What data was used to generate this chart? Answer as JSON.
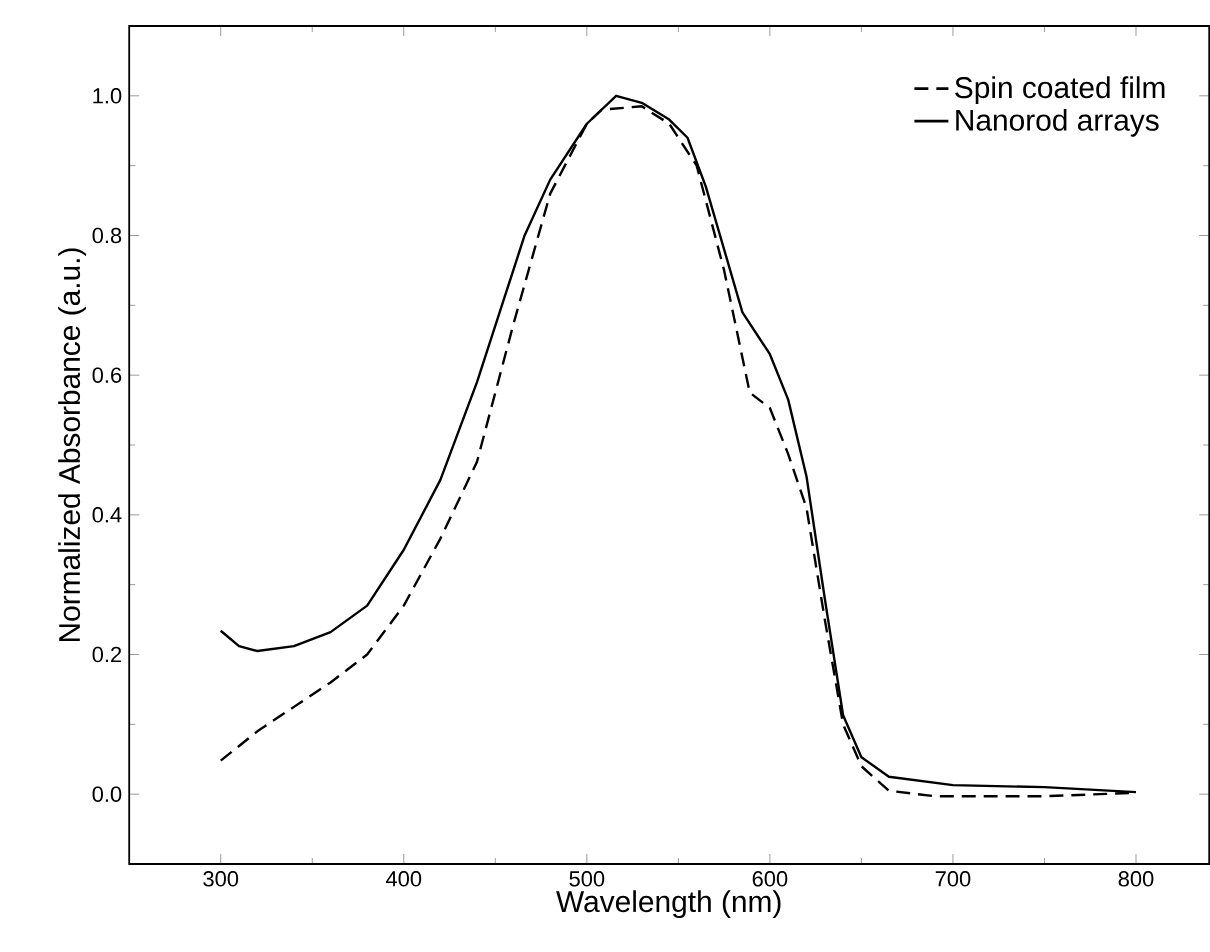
{
  "chart_data": {
    "type": "line",
    "xlabel": "Wavelength (nm)",
    "ylabel": "Normalized Absorbance (a.u.)",
    "xlim": [
      250,
      840
    ],
    "ylim": [
      -0.1,
      1.1
    ],
    "xticks": [
      300,
      400,
      500,
      600,
      700,
      800
    ],
    "yticks": [
      {
        "value": 0.0,
        "label": "0.0"
      },
      {
        "value": 0.2,
        "label": "0.2"
      },
      {
        "value": 0.4,
        "label": "0.4"
      },
      {
        "value": 0.6,
        "label": "0.6"
      },
      {
        "value": 0.8,
        "label": "0.8"
      },
      {
        "value": 1.0,
        "label": "1.0"
      }
    ],
    "legend": "top right",
    "grid": false,
    "series": [
      {
        "name": "Spin coated film",
        "color": "#000000",
        "line_style": "dashed",
        "x": [
          300,
          320,
          340,
          360,
          380,
          400,
          420,
          440,
          460,
          480,
          500,
          508,
          530,
          545,
          560,
          575,
          589,
          600,
          610,
          620,
          630,
          640,
          650,
          665,
          690,
          750,
          800
        ],
        "values": [
          0.048,
          0.09,
          0.125,
          0.16,
          0.2,
          0.27,
          0.366,
          0.476,
          0.674,
          0.86,
          0.96,
          0.98,
          0.985,
          0.96,
          0.9,
          0.75,
          0.575,
          0.553,
          0.487,
          0.41,
          0.25,
          0.1,
          0.04,
          0.005,
          -0.003,
          -0.003,
          0.002
        ]
      },
      {
        "name": "Nanorod arrays",
        "color": "#000000",
        "line_style": "solid",
        "x": [
          300,
          310,
          320,
          340,
          360,
          380,
          400,
          420,
          440,
          466,
          480,
          500,
          516,
          530,
          545,
          555,
          565,
          575,
          585,
          600,
          610,
          620,
          630,
          640,
          650,
          665,
          700,
          750,
          800
        ],
        "values": [
          0.234,
          0.212,
          0.205,
          0.212,
          0.232,
          0.27,
          0.35,
          0.45,
          0.59,
          0.8,
          0.88,
          0.96,
          1.0,
          0.99,
          0.966,
          0.94,
          0.87,
          0.78,
          0.69,
          0.63,
          0.565,
          0.455,
          0.28,
          0.113,
          0.053,
          0.025,
          0.013,
          0.01,
          0.003
        ]
      }
    ]
  }
}
